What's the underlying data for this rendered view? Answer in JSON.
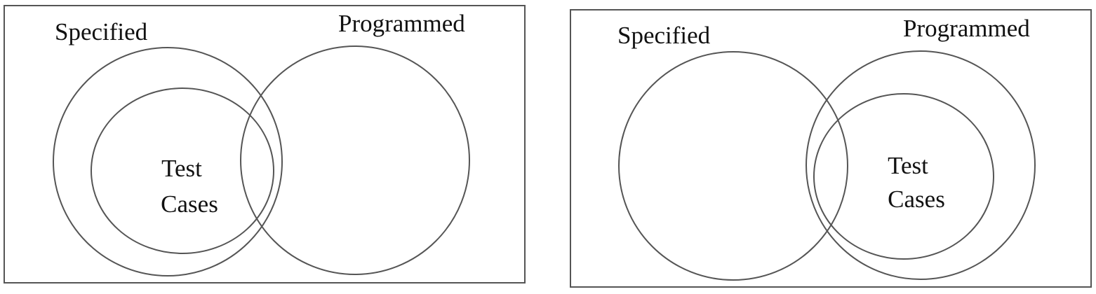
{
  "diagrams": [
    {
      "set_a_label": "Specified",
      "set_b_label": "Programmed",
      "inner_label_line1": "Test",
      "inner_label_line2": "Cases"
    },
    {
      "set_a_label": "Specified",
      "set_b_label": "Programmed",
      "inner_label_line1": "Test",
      "inner_label_line2": "Cases"
    }
  ],
  "colors": {
    "stroke": "#555555",
    "text": "#111111",
    "background": "#ffffff"
  }
}
